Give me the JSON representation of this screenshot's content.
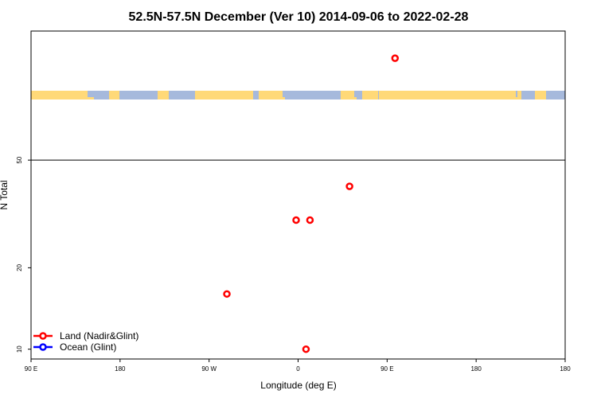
{
  "chart_data": {
    "type": "scatter",
    "title": "52.5N-57.5N December (Ver 10)   2014-09-06 to 2022-02-28",
    "xlabel": "Longitude (deg E)",
    "ylabel": "N Total",
    "x_range": [
      -90,
      180
    ],
    "y_scale": "log",
    "y_range": [
      9.2,
      150
    ],
    "x_ticks": [
      {
        "value": -90,
        "label": "90 E"
      },
      {
        "value": -45,
        "label": "180"
      },
      {
        "value": 0,
        "label": "90 W"
      },
      {
        "value": 45,
        "label": "0"
      },
      {
        "value": 90,
        "label": "90 E"
      },
      {
        "value": 135,
        "label": "180"
      }
    ],
    "y_ticks": [
      10,
      20,
      50
    ],
    "horizontal_line": 50,
    "series": [
      {
        "name": "Land (Nadir&Glint)",
        "color": "#ff0000",
        "points": [
          {
            "x": 94,
            "y": 119
          },
          {
            "x": 71,
            "y": 40
          },
          {
            "x": 44,
            "y": 30
          },
          {
            "x": 51,
            "y": 30
          },
          {
            "x": 9,
            "y": 16
          },
          {
            "x": 49,
            "y": 10
          }
        ]
      },
      {
        "name": "Ocean (Glint)",
        "color": "#0000ff",
        "points": []
      }
    ],
    "legend_position": "bottom-left",
    "map_strip": {
      "land_color": "#ffd978",
      "ocean_color": "#a6b9dc"
    }
  }
}
